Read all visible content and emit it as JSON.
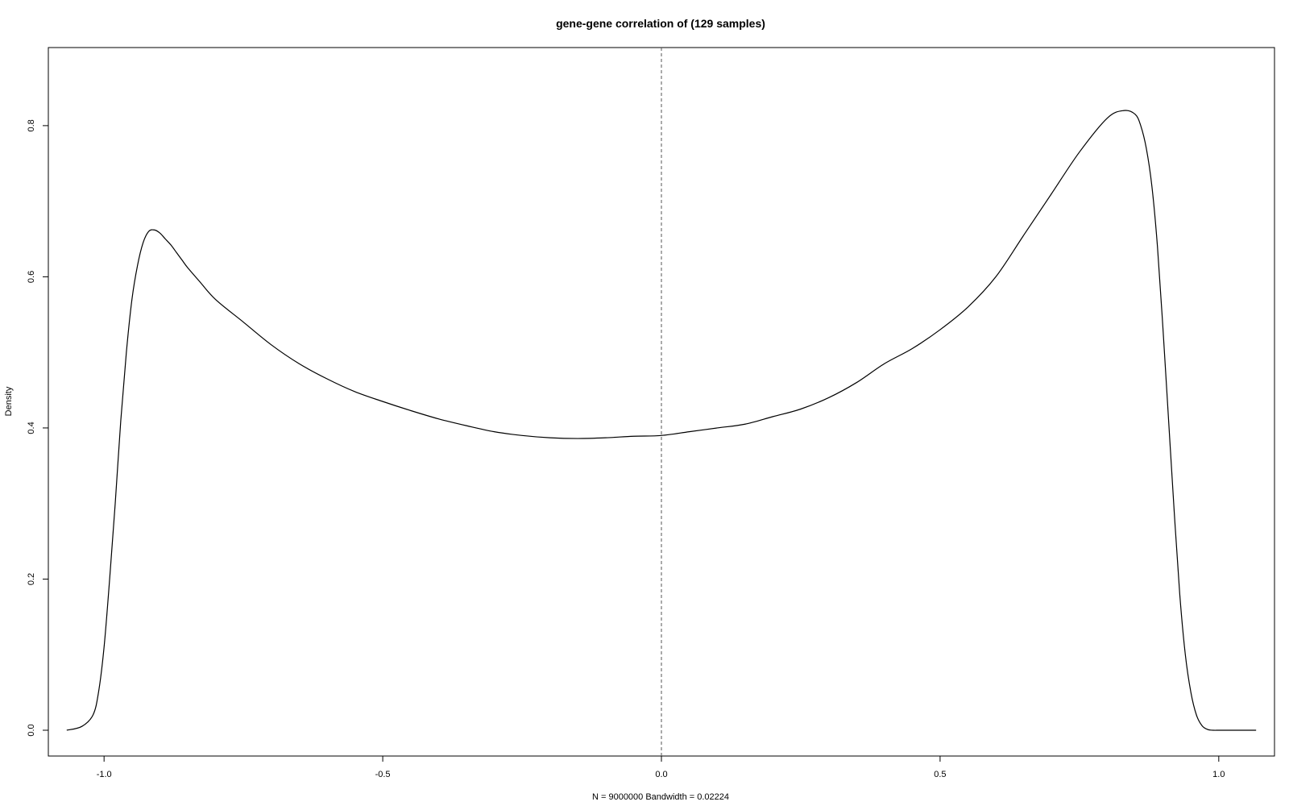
{
  "chart_data": {
    "type": "line",
    "title": "gene-gene correlation of (129 samples)",
    "xlabel": "N = 9000000   Bandwidth = 0.02224",
    "ylabel": "Density",
    "xlim": [
      -1.1,
      1.1
    ],
    "ylim": [
      0.0,
      0.85
    ],
    "x_ticks": [
      -1.0,
      -0.5,
      0.0,
      0.5,
      1.0
    ],
    "x_tick_labels": [
      "-1.0",
      "-0.5",
      "0.0",
      "0.5",
      "1.0"
    ],
    "y_ticks": [
      0.0,
      0.2,
      0.4,
      0.6,
      0.8
    ],
    "y_tick_labels": [
      "0.0",
      "0.2",
      "0.4",
      "0.6",
      "0.8"
    ],
    "grid": false,
    "reference_line": {
      "x": 0.0,
      "style": "dashed"
    },
    "line_color": "#000000",
    "series": [
      {
        "x": [
          -1.067,
          -1.04,
          -1.02,
          -1.01,
          -1.0,
          -0.99,
          -0.98,
          -0.97,
          -0.96,
          -0.95,
          -0.94,
          -0.93,
          -0.92,
          -0.91,
          -0.9,
          -0.89,
          -0.88,
          -0.87,
          -0.86,
          -0.85,
          -0.83,
          -0.8,
          -0.75,
          -0.7,
          -0.65,
          -0.6,
          -0.55,
          -0.5,
          -0.45,
          -0.4,
          -0.35,
          -0.3,
          -0.25,
          -0.2,
          -0.15,
          -0.1,
          -0.05,
          0.0,
          0.05,
          0.1,
          0.15,
          0.2,
          0.25,
          0.3,
          0.35,
          0.4,
          0.45,
          0.5,
          0.55,
          0.6,
          0.65,
          0.7,
          0.75,
          0.8,
          0.83,
          0.85,
          0.86,
          0.87,
          0.88,
          0.89,
          0.9,
          0.91,
          0.92,
          0.93,
          0.94,
          0.95,
          0.96,
          0.97,
          0.98,
          0.99,
          1.0,
          1.01,
          1.02,
          1.04,
          1.067
        ],
        "y": [
          0.0,
          0.005,
          0.02,
          0.05,
          0.11,
          0.2,
          0.3,
          0.41,
          0.5,
          0.57,
          0.615,
          0.645,
          0.66,
          0.662,
          0.658,
          0.65,
          0.642,
          0.632,
          0.622,
          0.612,
          0.595,
          0.57,
          0.54,
          0.51,
          0.485,
          0.465,
          0.448,
          0.435,
          0.423,
          0.412,
          0.403,
          0.395,
          0.39,
          0.387,
          0.386,
          0.387,
          0.389,
          0.39,
          0.395,
          0.4,
          0.405,
          0.415,
          0.425,
          0.44,
          0.46,
          0.485,
          0.505,
          0.53,
          0.56,
          0.6,
          0.655,
          0.71,
          0.765,
          0.81,
          0.82,
          0.815,
          0.8,
          0.77,
          0.72,
          0.64,
          0.53,
          0.41,
          0.29,
          0.18,
          0.1,
          0.05,
          0.02,
          0.006,
          0.001,
          0.0,
          0.0,
          0.0,
          0.0,
          0.0,
          0.0
        ]
      }
    ]
  }
}
